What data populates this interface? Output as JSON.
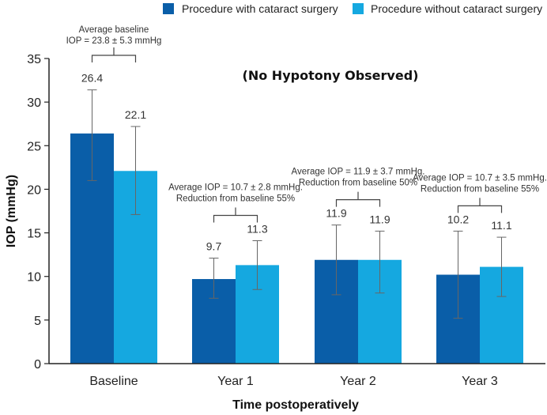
{
  "colors": {
    "with_cataract": "#0a5ea8",
    "without_cataract": "#15a8e0",
    "axis": "#222222",
    "error_bar": "#666666",
    "bracket": "#444444"
  },
  "chart_data": {
    "type": "bar",
    "xlabel": "Time postoperatively",
    "ylabel": "IOP (mmHg)",
    "ylim": [
      0,
      35
    ],
    "yticks": [
      0,
      5,
      10,
      15,
      20,
      25,
      30,
      35
    ],
    "categories": [
      "Baseline",
      "Year 1",
      "Year 2",
      "Year 3"
    ],
    "series": [
      {
        "name": "Procedure with cataract surgery",
        "values": [
          26.4,
          9.7,
          11.9,
          10.2
        ],
        "labels": [
          "26.4",
          "9.7",
          "11.9",
          "10.2"
        ],
        "error_low": [
          21.0,
          7.5,
          7.9,
          5.2
        ],
        "error_high": [
          31.4,
          12.1,
          15.9,
          15.2
        ]
      },
      {
        "name": "Procedure without cataract surgery",
        "values": [
          22.1,
          11.3,
          11.9,
          11.1
        ],
        "labels": [
          "22.1",
          "11.3",
          "11.9",
          "11.1"
        ],
        "error_low": [
          17.1,
          8.5,
          8.1,
          7.7
        ],
        "error_high": [
          27.2,
          14.1,
          15.2,
          14.5
        ]
      }
    ],
    "annotations": [
      {
        "category": "Baseline",
        "lines": [
          "Average baseline",
          "IOP = 23.8 ± 5.3 mmHg"
        ]
      },
      {
        "category": "Year 1",
        "lines": [
          "Average IOP = 10.7 ± 2.8 mmHg.",
          "Reduction from baseline 55%"
        ]
      },
      {
        "category": "Year 2",
        "lines": [
          "Average IOP = 11.9 ± 3.7 mmHg.",
          "Reduction from baseline 50%"
        ]
      },
      {
        "category": "Year 3",
        "lines": [
          "Average IOP = 10.7 ± 3.5 mmHg.",
          "Reduction from baseline 55%"
        ]
      }
    ],
    "note": "(No Hypotony Observed)",
    "legend_position": "top-right"
  }
}
